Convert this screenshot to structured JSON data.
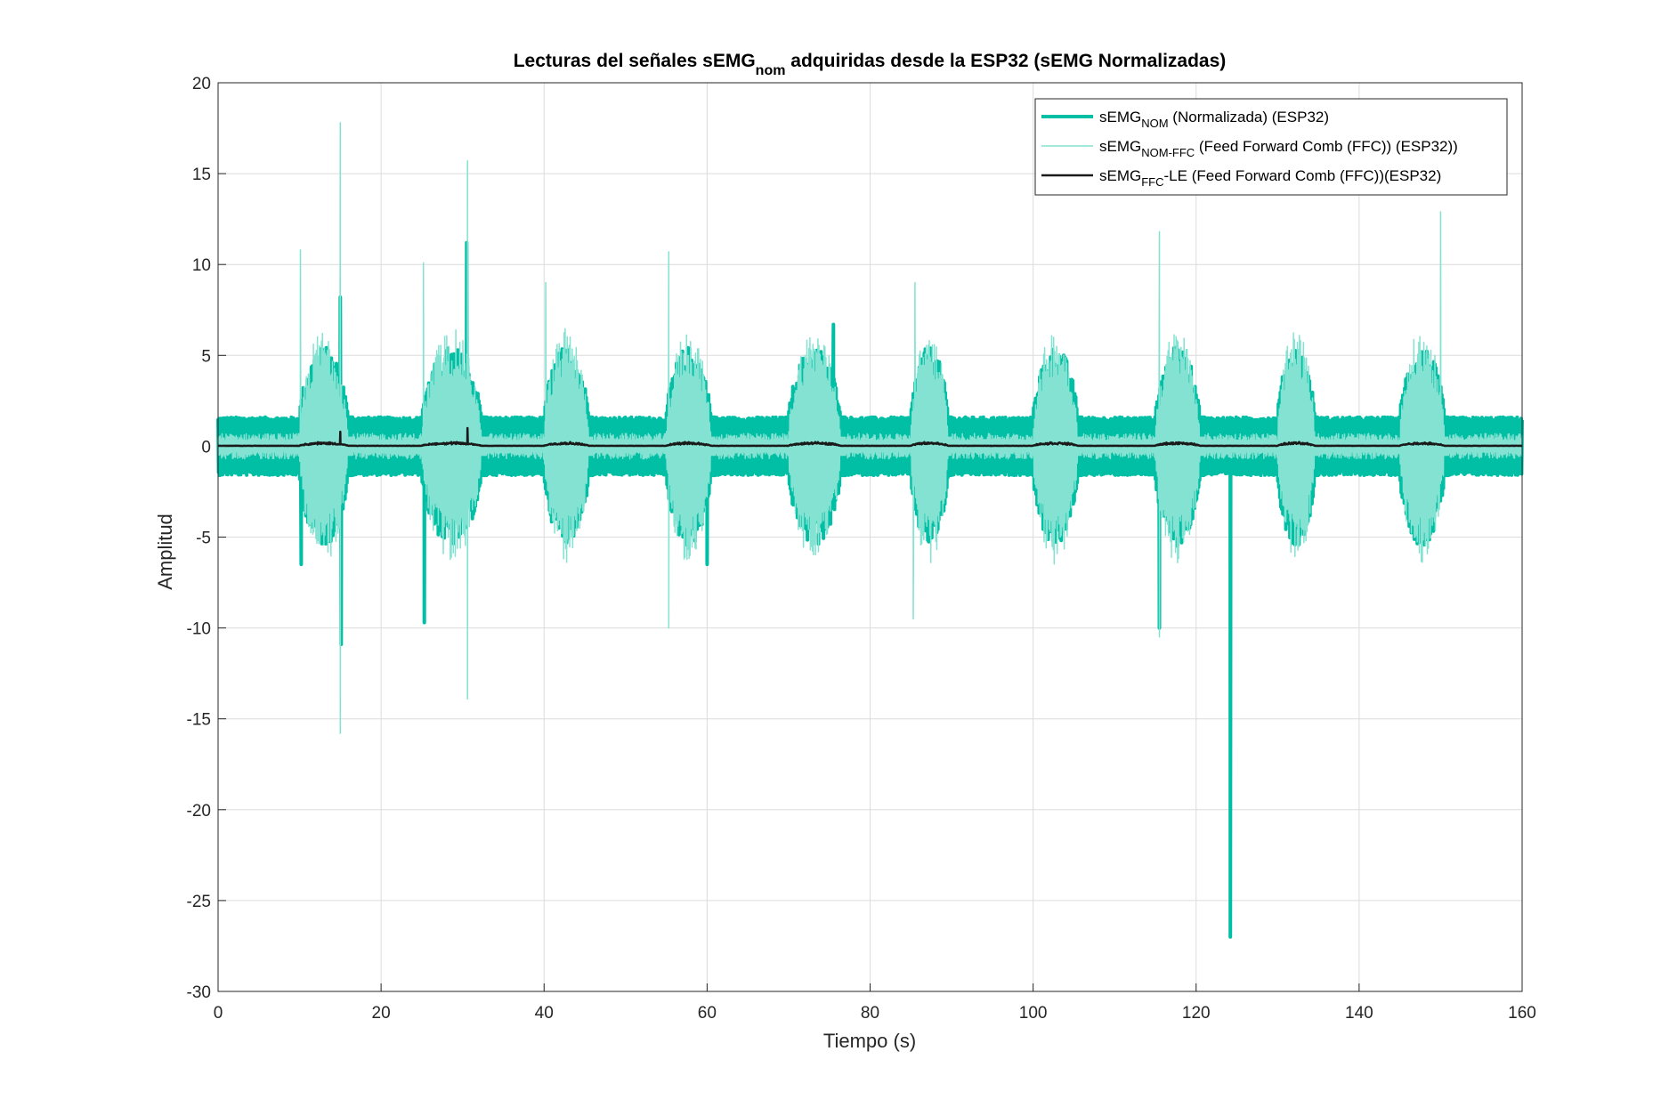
{
  "chart_data": {
    "type": "line",
    "title": {
      "part1": "Lecturas del señales sEMG",
      "sub": "nom",
      "part2": " adquiridas desde la ESP32 (sEMG Normalizadas)"
    },
    "xlabel": "Tiempo (s)",
    "ylabel": "Amplitud",
    "xlim": [
      0,
      160
    ],
    "ylim": [
      -30,
      20
    ],
    "xticks": [
      0,
      20,
      40,
      60,
      80,
      100,
      120,
      140,
      160
    ],
    "yticks": [
      20,
      15,
      10,
      5,
      0,
      -5,
      -10,
      -15,
      -20,
      -25,
      -30
    ],
    "grid": true,
    "legend_position": "top-right",
    "activation_bursts": [
      {
        "start": 10,
        "end": 16.5
      },
      {
        "start": 25,
        "end": 33
      },
      {
        "start": 40,
        "end": 46
      },
      {
        "start": 55,
        "end": 61
      },
      {
        "start": 70,
        "end": 77
      },
      {
        "start": 85,
        "end": 90
      },
      {
        "start": 100,
        "end": 106
      },
      {
        "start": 115,
        "end": 121
      },
      {
        "start": 130,
        "end": 135
      },
      {
        "start": 145,
        "end": 151
      }
    ],
    "series": [
      {
        "id": "nom",
        "legend_main": "sEMG",
        "legend_sub": "NOM",
        "legend_rest": " (Normalizada) (ESP32)",
        "color": "#00bfa5",
        "width": 4,
        "baseline_amplitude": 1.6,
        "burst_amplitude": 5.5,
        "spikes": [
          {
            "x": 10.2,
            "y": -6.5
          },
          {
            "x": 15.0,
            "y": 8.2
          },
          {
            "x": 15.1,
            "y": -10.9
          },
          {
            "x": 25.3,
            "y": -9.7
          },
          {
            "x": 30.5,
            "y": 11.2
          },
          {
            "x": 60.0,
            "y": -6.5
          },
          {
            "x": 75.5,
            "y": 6.7
          },
          {
            "x": 115.5,
            "y": -10.0
          },
          {
            "x": 124.2,
            "y": -27.0
          }
        ]
      },
      {
        "id": "ffc",
        "legend_main": "sEMG",
        "legend_sub": "NOM-FFC",
        "legend_rest": "  (Feed Forward Comb (FFC)) (ESP32))",
        "color": "#83e2d1",
        "width": 1.5,
        "baseline_amplitude": 0.5,
        "burst_amplitude": 6.5,
        "spikes": [
          {
            "x": 10.1,
            "y": 10.8
          },
          {
            "x": 15.0,
            "y": 17.8
          },
          {
            "x": 15.0,
            "y": -15.8
          },
          {
            "x": 25.2,
            "y": 10.1
          },
          {
            "x": 30.6,
            "y": 15.7
          },
          {
            "x": 30.6,
            "y": -13.9
          },
          {
            "x": 40.2,
            "y": 9.0
          },
          {
            "x": 55.3,
            "y": 10.7
          },
          {
            "x": 55.3,
            "y": -10.0
          },
          {
            "x": 85.5,
            "y": 9.0
          },
          {
            "x": 85.3,
            "y": -9.5
          },
          {
            "x": 115.5,
            "y": 11.8
          },
          {
            "x": 115.5,
            "y": -10.5
          },
          {
            "x": 150.0,
            "y": 12.9
          }
        ]
      },
      {
        "id": "le",
        "legend_main": "sEMG",
        "legend_sub": "FFC",
        "legend_rest": "-LE (Feed Forward Comb (FFC))(ESP32)",
        "color": "#1a1a1a",
        "width": 2.5,
        "baseline_amplitude": 0.03,
        "burst_amplitude": 0.25,
        "spikes": [
          {
            "x": 15.0,
            "y": 0.8
          },
          {
            "x": 30.6,
            "y": 1.0
          }
        ]
      }
    ]
  }
}
